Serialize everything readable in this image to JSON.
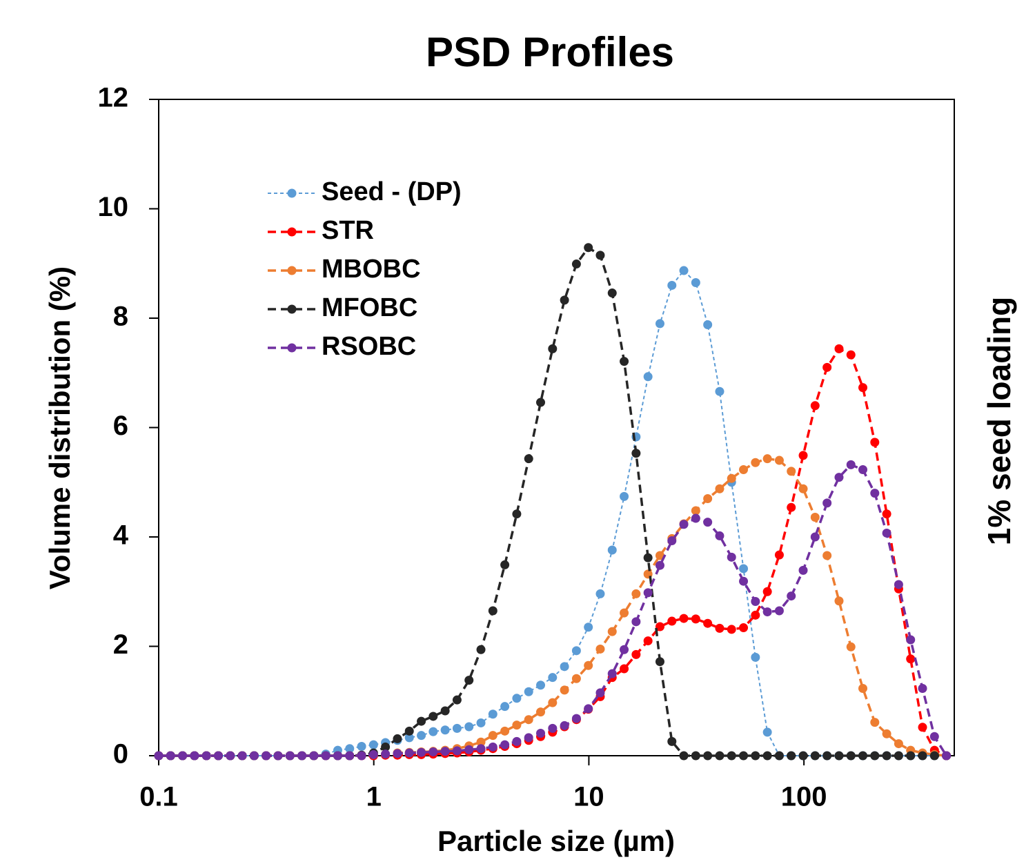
{
  "chart_data": {
    "type": "line",
    "title": "PSD Profiles",
    "x_label": "Particle size (µm)",
    "y_label": "Volume distribution (%)",
    "annotation": "1% seed loading",
    "xscale": "log",
    "xlim": [
      0.1,
      500
    ],
    "xticks": [
      0.1,
      1,
      10,
      100
    ],
    "ylim": [
      0,
      12
    ],
    "yticks": [
      0,
      2,
      4,
      6,
      8,
      10,
      12
    ],
    "legend": "upper left",
    "grid": false,
    "x": [
      0.1,
      0.1136,
      0.1291,
      0.1467,
      0.1667,
      0.1894,
      0.2153,
      0.2446,
      0.2779,
      0.3158,
      0.3589,
      0.4078,
      0.4634,
      0.5265,
      0.5983,
      0.6799,
      0.7725,
      0.8778,
      0.9973,
      1.133,
      1.288,
      1.463,
      1.663,
      1.889,
      2.147,
      2.439,
      2.772,
      3.15,
      3.579,
      4.067,
      4.621,
      5.251,
      5.967,
      6.78,
      7.704,
      8.754,
      9.946,
      11.3,
      12.84,
      14.59,
      16.58,
      18.84,
      21.41,
      24.33,
      27.64,
      31.41,
      35.69,
      40.56,
      46.08,
      52.36,
      59.5,
      67.61,
      76.82,
      87.29,
      99.19,
      112.7,
      128.1,
      145.6,
      165.4,
      187.9,
      213.5,
      242.6,
      275.7,
      313.3,
      356,
      404.5,
      459.6
    ],
    "series": [
      {
        "name": "Seed - (DP)",
        "color": "#5b9bd5",
        "values": [
          0,
          0,
          0,
          0,
          0,
          0,
          0,
          0,
          0,
          0,
          0,
          0,
          0,
          0,
          0.03,
          0.1,
          0.13,
          0.17,
          0.2,
          0.24,
          0.28,
          0.33,
          0.37,
          0.44,
          0.47,
          0.5,
          0.53,
          0.6,
          0.76,
          0.9,
          1.05,
          1.17,
          1.29,
          1.43,
          1.63,
          1.92,
          2.35,
          2.96,
          3.76,
          4.74,
          5.83,
          6.93,
          7.9,
          8.6,
          8.87,
          8.65,
          7.88,
          6.66,
          5.0,
          3.42,
          1.8,
          0.43,
          0,
          0,
          0,
          0,
          0,
          0,
          0,
          0,
          0,
          0,
          0,
          0,
          0,
          0,
          0
        ]
      },
      {
        "name": "STR",
        "color": "#ff0000",
        "values": [
          0,
          0,
          0,
          0,
          0,
          0,
          0,
          0,
          0,
          0,
          0,
          0,
          0,
          0,
          0,
          0,
          0,
          0,
          0,
          0.01,
          0.01,
          0.02,
          0.02,
          0.03,
          0.04,
          0.05,
          0.07,
          0.1,
          0.13,
          0.17,
          0.22,
          0.28,
          0.35,
          0.43,
          0.53,
          0.66,
          0.85,
          1.08,
          1.43,
          1.59,
          1.85,
          2.1,
          2.36,
          2.46,
          2.51,
          2.5,
          2.42,
          2.33,
          2.31,
          2.34,
          2.57,
          3.0,
          3.67,
          4.54,
          5.49,
          6.4,
          7.1,
          7.44,
          7.33,
          6.73,
          5.73,
          4.42,
          3.05,
          1.77,
          0.52,
          0.1,
          0
        ]
      },
      {
        "name": "MBOBC",
        "color": "#ed7d31",
        "values": [
          0,
          0,
          0,
          0,
          0,
          0,
          0,
          0,
          0,
          0,
          0,
          0,
          0,
          0,
          0,
          0,
          0,
          0.01,
          0.02,
          0.03,
          0.05,
          0.06,
          0.07,
          0.08,
          0.1,
          0.13,
          0.18,
          0.25,
          0.37,
          0.45,
          0.56,
          0.66,
          0.8,
          0.97,
          1.2,
          1.41,
          1.65,
          1.95,
          2.27,
          2.61,
          2.96,
          3.32,
          3.66,
          3.97,
          4.24,
          4.48,
          4.7,
          4.88,
          5.07,
          5.23,
          5.36,
          5.43,
          5.4,
          5.2,
          4.88,
          4.36,
          3.66,
          2.83,
          1.99,
          1.23,
          0.61,
          0.4,
          0.22,
          0.1,
          0.05,
          0.02,
          0
        ]
      },
      {
        "name": "MFOBC",
        "color": "#262626",
        "values": [
          0,
          0,
          0,
          0,
          0,
          0,
          0,
          0,
          0,
          0,
          0,
          0,
          0,
          0,
          0,
          0,
          0,
          0.01,
          0.05,
          0.16,
          0.31,
          0.45,
          0.63,
          0.72,
          0.82,
          1.02,
          1.38,
          1.94,
          2.65,
          3.49,
          4.42,
          5.43,
          6.46,
          7.44,
          8.33,
          8.99,
          9.29,
          9.15,
          8.46,
          7.21,
          5.53,
          3.62,
          1.72,
          0.26,
          0,
          0,
          0,
          0,
          0,
          0,
          0,
          0,
          0,
          0,
          0,
          0,
          0,
          0,
          0,
          0,
          0,
          0,
          0,
          0,
          0,
          0,
          0
        ]
      },
      {
        "name": "RSOBC",
        "color": "#7030a0",
        "values": [
          0,
          0,
          0,
          0,
          0,
          0,
          0,
          0,
          0,
          0,
          0,
          0,
          0,
          0,
          0,
          0,
          0,
          0,
          0.02,
          0.03,
          0.04,
          0.05,
          0.06,
          0.07,
          0.08,
          0.09,
          0.11,
          0.13,
          0.16,
          0.2,
          0.26,
          0.33,
          0.41,
          0.5,
          0.55,
          0.68,
          0.86,
          1.15,
          1.5,
          1.94,
          2.45,
          2.98,
          3.48,
          3.93,
          4.23,
          4.34,
          4.27,
          4.02,
          3.63,
          3.19,
          2.82,
          2.63,
          2.65,
          2.92,
          3.39,
          4.0,
          4.62,
          5.09,
          5.32,
          5.23,
          4.8,
          4.07,
          3.13,
          2.12,
          1.23,
          0.35,
          0
        ]
      }
    ]
  }
}
